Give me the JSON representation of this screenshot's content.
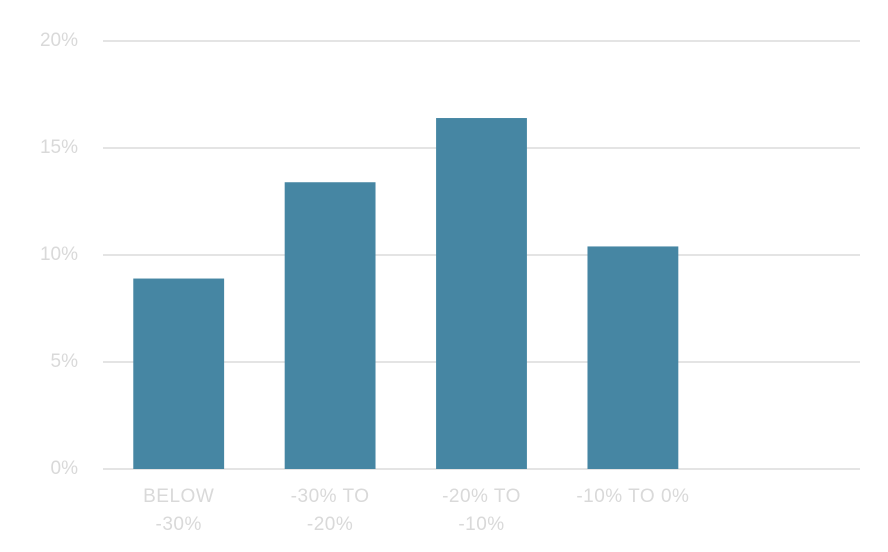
{
  "chart_data": {
    "type": "bar",
    "categories": [
      "BELOW -30%",
      "-30% TO -20%",
      "-20% TO -10%",
      "-10% TO 0%",
      null
    ],
    "values": [
      8.9,
      13.4,
      16.4,
      10.4,
      null
    ],
    "color": "#4686a3",
    "ylim": [
      0,
      20
    ],
    "yticks": [
      {
        "value": 0,
        "label": "0%"
      },
      {
        "value": 5,
        "label": "5%"
      },
      {
        "value": 10,
        "label": "10%"
      },
      {
        "value": 15,
        "label": "15%"
      },
      {
        "value": 20,
        "label": "20%"
      }
    ],
    "grid": true
  }
}
